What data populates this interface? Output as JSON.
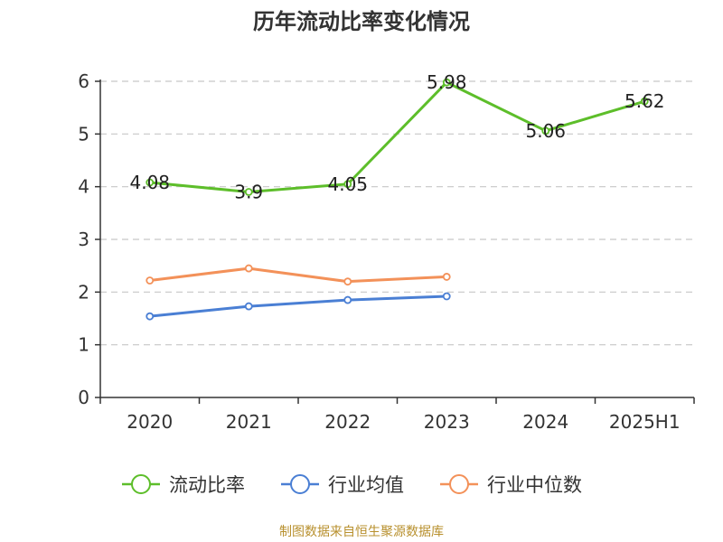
{
  "chart_data": {
    "type": "line",
    "title": "历年流动比率变化情况",
    "categories": [
      "2020",
      "2021",
      "2022",
      "2023",
      "2024",
      "2025H1"
    ],
    "ylim": [
      0,
      6
    ],
    "yticks": [
      0,
      1,
      2,
      3,
      4,
      5,
      6
    ],
    "grid": true,
    "legend_position": "bottom",
    "series": [
      {
        "name": "流动比率",
        "color": "#5dbe2a",
        "show_labels": true,
        "values": [
          4.08,
          3.9,
          4.05,
          5.98,
          5.06,
          5.62
        ],
        "labels": [
          "4.08",
          "3.9",
          "4.05",
          "5.98",
          "5.06",
          "5.62"
        ]
      },
      {
        "name": "行业均值",
        "color": "#4a7fd4",
        "show_labels": false,
        "values": [
          1.54,
          1.73,
          1.85,
          1.92,
          null,
          null
        ]
      },
      {
        "name": "行业中位数",
        "color": "#f39159",
        "show_labels": false,
        "values": [
          2.22,
          2.45,
          2.2,
          2.29,
          null,
          null
        ]
      }
    ]
  },
  "source_note": "制图数据来自恒生聚源数据库"
}
